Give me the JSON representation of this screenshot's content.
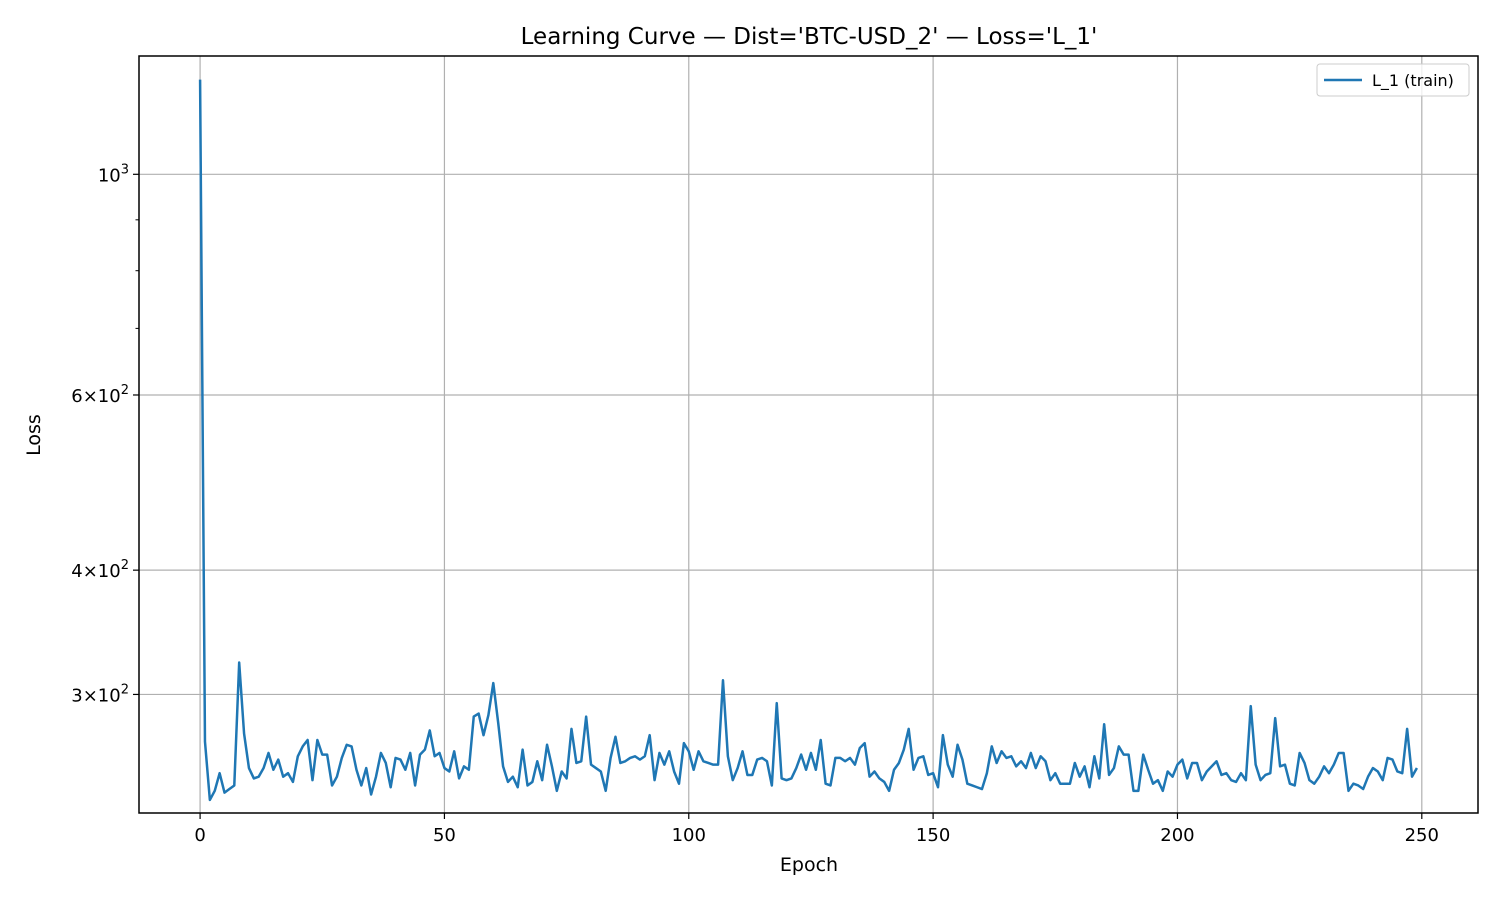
{
  "chart_data": {
    "type": "line",
    "title": "Learning Curve — Dist='BTC-USD_2' — Loss='L_1'",
    "xlabel": "Epoch",
    "ylabel": "Loss",
    "y_scale": "log",
    "xlim": [
      -12.5,
      261.5
    ],
    "ylim": [
      228,
      1315
    ],
    "x_ticks": [
      0,
      50,
      100,
      150,
      200,
      250
    ],
    "y_major_ticks": [
      {
        "value": 300,
        "base": "3×10",
        "exp": "2"
      },
      {
        "value": 400,
        "base": "4×10",
        "exp": "2"
      },
      {
        "value": 600,
        "base": "6×10",
        "exp": "2"
      },
      {
        "value": 1000,
        "base": "10",
        "exp": "3"
      }
    ],
    "y_minor_ticks": [
      700,
      800,
      900
    ],
    "grid": true,
    "legend_position": "top-right",
    "series": [
      {
        "name": "L_1 (train)",
        "color": "#1f77b4",
        "y": [
          1245,
          269,
          235,
          240,
          250,
          239,
          241,
          243,
          323,
          274,
          253,
          247,
          248,
          253,
          262,
          252,
          258,
          248,
          250,
          245,
          260,
          266,
          270,
          246,
          270,
          261,
          261,
          243,
          248,
          259,
          267,
          266,
          252,
          243,
          253,
          238,
          248,
          262,
          256,
          242,
          259,
          258,
          252,
          262,
          243,
          261,
          264,
          276,
          260,
          262,
          253,
          251,
          263,
          247,
          254,
          252,
          285,
          287,
          273,
          286,
          308,
          281,
          254,
          245,
          248,
          242,
          264,
          243,
          245,
          257,
          246,
          267,
          254,
          240,
          251,
          247,
          277,
          256,
          257,
          285,
          255,
          253,
          251,
          240,
          259,
          272,
          256,
          257,
          259,
          260,
          258,
          260,
          273,
          246,
          262,
          255,
          263,
          251,
          244,
          268,
          263,
          252,
          263,
          257,
          256,
          255,
          255,
          310,
          260,
          246,
          253,
          263,
          249,
          249,
          258,
          259,
          257,
          243,
          294,
          247,
          246,
          247,
          253,
          261,
          252,
          262,
          252,
          270,
          244,
          243,
          259,
          259,
          257,
          259,
          255,
          265,
          268,
          248,
          251,
          247,
          245,
          240,
          252,
          256,
          264,
          277,
          252,
          259,
          260,
          249,
          250,
          242,
          273,
          255,
          248,
          267,
          258,
          244,
          243,
          242,
          241,
          250,
          266,
          256,
          263,
          259,
          260,
          254,
          257,
          253,
          262,
          253,
          260,
          257,
          246,
          250,
          244,
          244,
          244,
          256,
          248,
          254,
          242,
          260,
          247,
          280,
          249,
          253,
          266,
          261,
          261,
          240,
          240,
          261,
          252,
          244,
          246,
          240,
          251,
          248,
          255,
          258,
          247,
          256,
          256,
          246,
          251,
          254,
          257,
          249,
          250,
          246,
          245,
          250,
          246,
          292,
          255,
          246,
          249,
          250,
          284,
          254,
          255,
          244,
          243,
          262,
          256,
          246,
          244,
          248,
          254,
          250,
          255,
          262,
          262,
          240,
          244,
          243,
          241,
          248,
          253,
          251,
          246,
          259,
          258,
          251,
          250,
          277,
          248,
          253
        ]
      }
    ]
  }
}
